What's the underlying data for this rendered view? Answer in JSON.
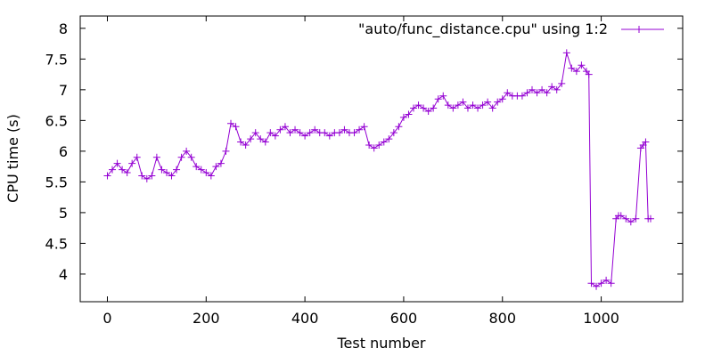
{
  "chart_data": {
    "type": "line",
    "xlabel": "Test number",
    "ylabel": "CPU time (s)",
    "xlim": [
      -55,
      1165
    ],
    "ylim": [
      3.55,
      8.2
    ],
    "xticks": [
      0,
      200,
      400,
      600,
      800,
      1000
    ],
    "yticks": [
      4,
      4.5,
      5,
      5.5,
      6,
      6.5,
      7,
      7.5,
      8
    ],
    "ytick_labels": [
      "4",
      "4.5",
      "5",
      "5.5",
      "6",
      "6.5",
      "7",
      "7.5",
      "8"
    ],
    "grid": false,
    "legend_position": "top-right",
    "point_marker": "plus",
    "series": [
      {
        "name": "\"auto/func_distance.cpu\" using 1:2",
        "color": "#9400d3",
        "x": [
          0,
          10,
          20,
          30,
          40,
          50,
          60,
          70,
          80,
          90,
          100,
          110,
          120,
          130,
          140,
          150,
          160,
          170,
          180,
          190,
          200,
          210,
          220,
          230,
          240,
          250,
          260,
          270,
          280,
          290,
          300,
          310,
          320,
          330,
          340,
          350,
          360,
          370,
          380,
          390,
          400,
          410,
          420,
          430,
          440,
          450,
          460,
          470,
          480,
          490,
          500,
          510,
          520,
          530,
          540,
          550,
          560,
          570,
          580,
          590,
          600,
          610,
          620,
          630,
          640,
          650,
          660,
          670,
          680,
          690,
          700,
          710,
          720,
          730,
          740,
          750,
          760,
          770,
          780,
          790,
          800,
          810,
          820,
          830,
          840,
          850,
          860,
          870,
          880,
          890,
          900,
          910,
          920,
          930,
          940,
          950,
          960,
          970,
          975,
          980,
          990,
          1000,
          1010,
          1020,
          1030,
          1035,
          1040,
          1050,
          1060,
          1070,
          1080,
          1085,
          1090,
          1095,
          1100
        ],
        "y": [
          5.6,
          5.7,
          5.8,
          5.7,
          5.65,
          5.8,
          5.9,
          5.6,
          5.55,
          5.6,
          5.9,
          5.7,
          5.65,
          5.6,
          5.7,
          5.9,
          6.0,
          5.9,
          5.75,
          5.7,
          5.65,
          5.6,
          5.75,
          5.8,
          6.0,
          6.45,
          6.4,
          6.15,
          6.1,
          6.2,
          6.3,
          6.2,
          6.15,
          6.3,
          6.25,
          6.35,
          6.4,
          6.3,
          6.35,
          6.3,
          6.25,
          6.3,
          6.35,
          6.3,
          6.3,
          6.25,
          6.3,
          6.3,
          6.35,
          6.3,
          6.3,
          6.35,
          6.4,
          6.1,
          6.05,
          6.1,
          6.15,
          6.2,
          6.3,
          6.4,
          6.55,
          6.6,
          6.7,
          6.75,
          6.7,
          6.65,
          6.7,
          6.85,
          6.9,
          6.75,
          6.7,
          6.75,
          6.8,
          6.7,
          6.75,
          6.7,
          6.75,
          6.8,
          6.7,
          6.8,
          6.85,
          6.95,
          6.9,
          6.9,
          6.9,
          6.95,
          7.0,
          6.95,
          7.0,
          6.95,
          7.05,
          7.0,
          7.1,
          7.6,
          7.35,
          7.3,
          7.4,
          7.3,
          7.25,
          3.85,
          3.8,
          3.85,
          3.9,
          3.85,
          4.9,
          4.95,
          4.95,
          4.9,
          4.85,
          4.9,
          6.05,
          6.1,
          6.15,
          4.9,
          4.9
        ]
      }
    ]
  }
}
